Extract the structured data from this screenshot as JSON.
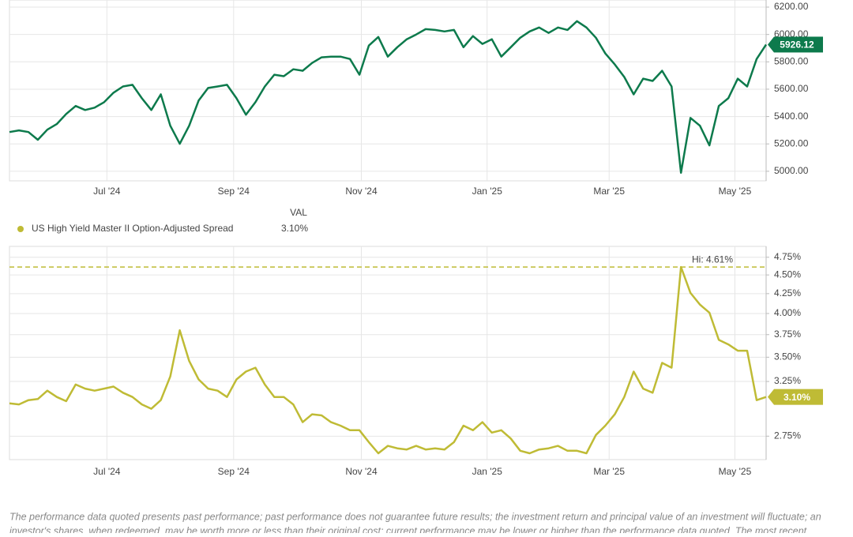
{
  "chart_data": [
    {
      "type": "line",
      "series": [
        {
          "color": "#0d7a4c",
          "values": [
            5287,
            5299,
            5287,
            5230,
            5304,
            5345,
            5419,
            5477,
            5448,
            5465,
            5505,
            5574,
            5620,
            5632,
            5534,
            5448,
            5562,
            5333,
            5201,
            5333,
            5517,
            5609,
            5620,
            5632,
            5534,
            5413,
            5505,
            5620,
            5706,
            5695,
            5746,
            5735,
            5792,
            5833,
            5838,
            5838,
            5821,
            5706,
            5919,
            5982,
            5838,
            5907,
            5965,
            6000,
            6039,
            6033,
            6022,
            6033,
            5907,
            5988,
            5931,
            5965,
            5838,
            5907,
            5976,
            6022,
            6051,
            6011,
            6051,
            6033,
            6097,
            6051,
            5976,
            5861,
            5781,
            5689,
            5562,
            5677,
            5660,
            5735,
            5620,
            4989,
            5390,
            5333,
            5189,
            5477,
            5534,
            5677,
            5620,
            5821,
            5926.12
          ]
        }
      ],
      "xlim": [
        0,
        80
      ],
      "xticks": [
        {
          "value": 10.3,
          "label": "Jul '24"
        },
        {
          "value": 23.7,
          "label": "Sep '24"
        },
        {
          "value": 37.2,
          "label": "Nov '24"
        },
        {
          "value": 50.5,
          "label": "Jan '25"
        },
        {
          "value": 63.4,
          "label": "Mar '25"
        },
        {
          "value": 76.7,
          "label": "May '25"
        }
      ],
      "ylim": [
        4930,
        6252
      ],
      "yticks": [
        {
          "value": 5000,
          "label": "5000.00"
        },
        {
          "value": 5200,
          "label": "5200.00"
        },
        {
          "value": 5400,
          "label": "5400.00"
        },
        {
          "value": 5600,
          "label": "5600.00"
        },
        {
          "value": 5800,
          "label": "5800.00"
        },
        {
          "value": 6000,
          "label": "6000.00"
        },
        {
          "value": 6200,
          "label": "6200.00"
        }
      ],
      "grid": true,
      "log_scale": false
    },
    {
      "type": "line",
      "legend_header": "VAL",
      "series": [
        {
          "name": "US High Yield Master II Option-Adjusted Spread",
          "color": "#bfbb35",
          "values": [
            3.04,
            3.03,
            3.07,
            3.08,
            3.16,
            3.1,
            3.06,
            3.22,
            3.18,
            3.16,
            3.18,
            3.2,
            3.14,
            3.1,
            3.03,
            2.99,
            3.07,
            3.3,
            3.8,
            3.46,
            3.27,
            3.18,
            3.16,
            3.1,
            3.27,
            3.35,
            3.39,
            3.22,
            3.1,
            3.1,
            3.03,
            2.87,
            2.94,
            2.93,
            2.87,
            2.84,
            2.8,
            2.8,
            2.7,
            2.61,
            2.67,
            2.65,
            2.64,
            2.67,
            2.64,
            2.65,
            2.64,
            2.7,
            2.84,
            2.8,
            2.87,
            2.78,
            2.8,
            2.73,
            2.63,
            2.61,
            2.64,
            2.65,
            2.67,
            2.63,
            2.63,
            2.61,
            2.76,
            2.84,
            2.94,
            3.1,
            3.35,
            3.18,
            3.14,
            3.44,
            3.39,
            4.61,
            4.26,
            4.11,
            4.01,
            3.69,
            3.64,
            3.57,
            3.57,
            3.07,
            3.1
          ]
        }
      ],
      "last_value_label": "3.10%",
      "hi_line": {
        "value": 4.61,
        "label": "Hi: 4.61%"
      },
      "xlim": [
        0,
        80
      ],
      "xticks": [
        {
          "value": 10.3,
          "label": "Jul '24"
        },
        {
          "value": 23.7,
          "label": "Sep '24"
        },
        {
          "value": 37.2,
          "label": "Nov '24"
        },
        {
          "value": 50.5,
          "label": "Jan '25"
        },
        {
          "value": 63.4,
          "label": "Mar '25"
        },
        {
          "value": 76.7,
          "label": "May '25"
        }
      ],
      "ylim": [
        2.56,
        4.91
      ],
      "yticks": [
        {
          "value": 2.75,
          "label": "2.75%"
        },
        {
          "value": 3.25,
          "label": "3.25%"
        },
        {
          "value": 3.5,
          "label": "3.50%"
        },
        {
          "value": 3.75,
          "label": "3.75%"
        },
        {
          "value": 4.0,
          "label": "4.00%"
        },
        {
          "value": 4.25,
          "label": "4.25%"
        },
        {
          "value": 4.5,
          "label": "4.50%"
        },
        {
          "value": 4.75,
          "label": "4.75%"
        }
      ],
      "grid": true,
      "log_scale": true
    }
  ],
  "disclaimer": [
    "The performance data quoted presents past performance; past performance does not guarantee future results; the investment return and principal value of an investment will fluctuate; an",
    "investor's shares, when redeemed, may be worth more or less than their original cost; current performance may be lower or higher than the performance data quoted. The most recent"
  ]
}
